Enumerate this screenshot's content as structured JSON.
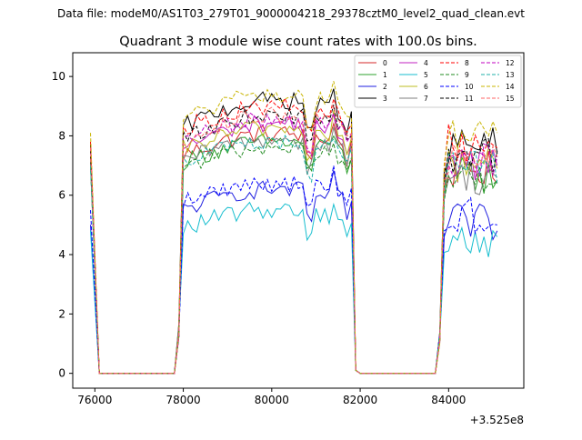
{
  "figure": {
    "suptitle": "Data file: modeM0/AS1T03_279T01_9000004218_29378cztM0_level2_quad_clean.evt"
  },
  "chart_data": {
    "type": "line",
    "title": "Quadrant 3 module wise count rates with 100.0s bins.",
    "xlabel": "",
    "ylabel": "",
    "x_offset_label": "+3.525e8",
    "xlim": [
      75500,
      85700
    ],
    "ylim": [
      -0.5,
      10.8
    ],
    "xticks": [
      76000,
      78000,
      80000,
      82000,
      84000
    ],
    "xtick_labels": [
      "76000",
      "78000",
      "80000",
      "82000",
      "84000"
    ],
    "yticks": [
      0,
      2,
      4,
      6,
      8,
      10
    ],
    "ytick_labels": [
      "0",
      "2",
      "4",
      "6",
      "8",
      "10"
    ],
    "legend_position": "top-right",
    "x_segments": [
      {
        "start": 75900,
        "end": 76000
      },
      {
        "start": 76100,
        "end": 77800
      },
      {
        "start": 77900,
        "end": 81900
      },
      {
        "start": 82000,
        "end": 83700
      },
      {
        "start": 83800,
        "end": 85100
      }
    ],
    "series": [
      {
        "name": "0",
        "color": "#d62728",
        "dash": false,
        "start": 7.2,
        "low": 6.8,
        "high": 8.4,
        "tail": 6.4,
        "mod": [
          0,
          -0.3,
          0,
          0,
          0,
          0,
          0,
          0,
          0,
          0,
          0,
          0,
          0,
          0,
          0,
          0,
          0,
          0,
          0,
          0,
          0,
          0,
          0,
          0,
          0,
          0,
          0,
          0,
          0,
          0,
          -1.0,
          0,
          0,
          0,
          0,
          0,
          0,
          0,
          0,
          0,
          0
        ]
      },
      {
        "name": "1",
        "color": "#2ca02c",
        "dash": false,
        "start": 7.1,
        "low": 6.6,
        "high": 8.1,
        "tail": 6.5
      },
      {
        "name": "2",
        "color": "#1f1fe0",
        "dash": false,
        "start": 5.0,
        "low": 5.0,
        "high": 6.5,
        "tail": 4.8
      },
      {
        "name": "3",
        "color": "#000000",
        "dash": false,
        "start": 7.7,
        "low": 7.6,
        "high": 9.6,
        "tail": 7.4
      },
      {
        "name": "4",
        "color": "#c020c0",
        "dash": false,
        "start": 7.3,
        "low": 7.0,
        "high": 8.8,
        "tail": 7.0
      },
      {
        "name": "5",
        "color": "#17becf",
        "dash": false,
        "start": 4.8,
        "low": 4.4,
        "high": 5.8,
        "tail": 4.6
      },
      {
        "name": "6",
        "color": "#bcbd22",
        "dash": false,
        "start": 7.3,
        "low": 7.0,
        "high": 8.6,
        "tail": 6.9
      },
      {
        "name": "7",
        "color": "#7f7f7f",
        "dash": false,
        "start": 7.0,
        "low": 6.6,
        "high": 8.2,
        "tail": 6.6
      },
      {
        "name": "8",
        "color": "#ff0000",
        "dash": true,
        "start": 7.8,
        "low": 7.7,
        "high": 9.3,
        "tail": 7.6
      },
      {
        "name": "9",
        "color": "#228b22",
        "dash": true,
        "start": 7.0,
        "low": 6.5,
        "high": 7.9,
        "tail": 6.5
      },
      {
        "name": "10",
        "color": "#0000ff",
        "dash": true,
        "start": 5.5,
        "low": 5.3,
        "high": 6.7,
        "tail": 5.0
      },
      {
        "name": "11",
        "color": "#000000",
        "dash": true,
        "start": 7.5,
        "low": 7.2,
        "high": 9.1,
        "tail": 7.5
      },
      {
        "name": "12",
        "color": "#c000c0",
        "dash": true,
        "start": 7.6,
        "low": 7.2,
        "high": 8.9,
        "tail": 7.3
      },
      {
        "name": "13",
        "color": "#20b2aa",
        "dash": true,
        "start": 7.0,
        "low": 6.8,
        "high": 8.0,
        "tail": 6.4
      },
      {
        "name": "14",
        "color": "#c8b400",
        "dash": true,
        "start": 8.1,
        "low": 8.0,
        "high": 9.7,
        "tail": 8.1
      },
      {
        "name": "15",
        "color": "#ff6666",
        "dash": true,
        "start": 7.6,
        "low": 7.3,
        "high": 9.0,
        "tail": 7.3
      }
    ]
  }
}
